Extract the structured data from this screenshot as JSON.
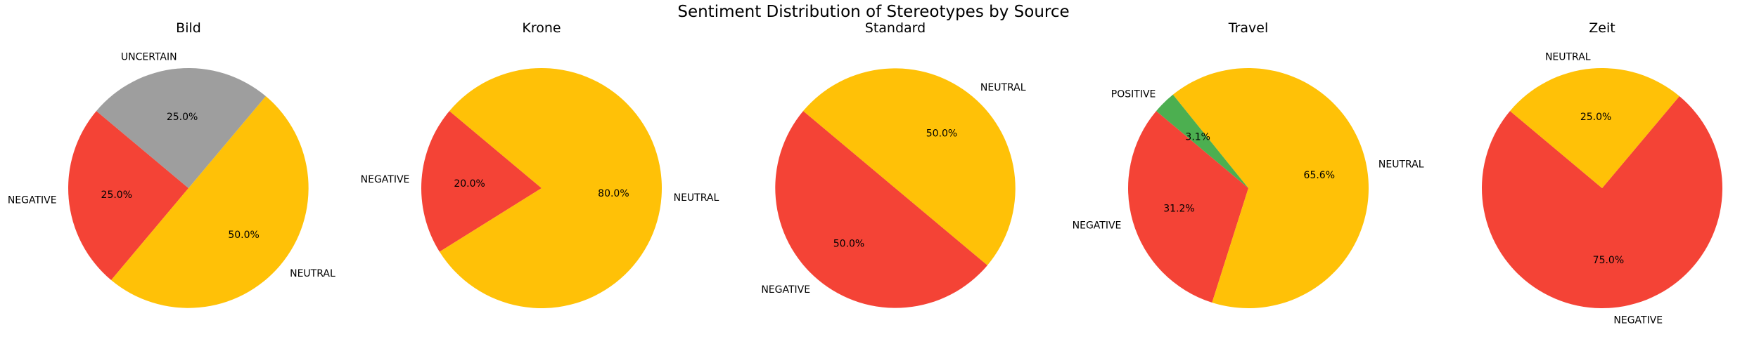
{
  "figure": {
    "title": "Sentiment Distribution of Stereotypes by Source"
  },
  "colors": {
    "NEGATIVE": "#f44336",
    "NEUTRAL": "#ffc107",
    "POSITIVE": "#4caf50",
    "UNCERTAIN": "#9e9e9e"
  },
  "chart_data": [
    {
      "type": "pie",
      "title": "Bild",
      "start_angle": 140,
      "slices": [
        {
          "label": "NEGATIVE",
          "value": 25.0,
          "pct_label": "25.0%"
        },
        {
          "label": "NEUTRAL",
          "value": 50.0,
          "pct_label": "50.0%"
        },
        {
          "label": "UNCERTAIN",
          "value": 25.0,
          "pct_label": "25.0%"
        }
      ]
    },
    {
      "type": "pie",
      "title": "Krone",
      "start_angle": 140,
      "slices": [
        {
          "label": "NEGATIVE",
          "value": 20.0,
          "pct_label": "20.0%"
        },
        {
          "label": "NEUTRAL",
          "value": 80.0,
          "pct_label": "80.0%"
        }
      ]
    },
    {
      "type": "pie",
      "title": "Standard",
      "start_angle": 140,
      "slices": [
        {
          "label": "NEGATIVE",
          "value": 50.0,
          "pct_label": "50.0%"
        },
        {
          "label": "NEUTRAL",
          "value": 50.0,
          "pct_label": "50.0%"
        }
      ]
    },
    {
      "type": "pie",
      "title": "Travel",
      "start_angle": 140,
      "slices": [
        {
          "label": "NEGATIVE",
          "value": 31.2,
          "pct_label": "31.2%"
        },
        {
          "label": "NEUTRAL",
          "value": 65.6,
          "pct_label": "65.6%"
        },
        {
          "label": "POSITIVE",
          "value": 3.1,
          "pct_label": "3.1%"
        }
      ]
    },
    {
      "type": "pie",
      "title": "Zeit",
      "start_angle": 140,
      "slices": [
        {
          "label": "NEGATIVE",
          "value": 75.0,
          "pct_label": "75.0%"
        },
        {
          "label": "NEUTRAL",
          "value": 25.0,
          "pct_label": "25.0%"
        }
      ]
    }
  ]
}
